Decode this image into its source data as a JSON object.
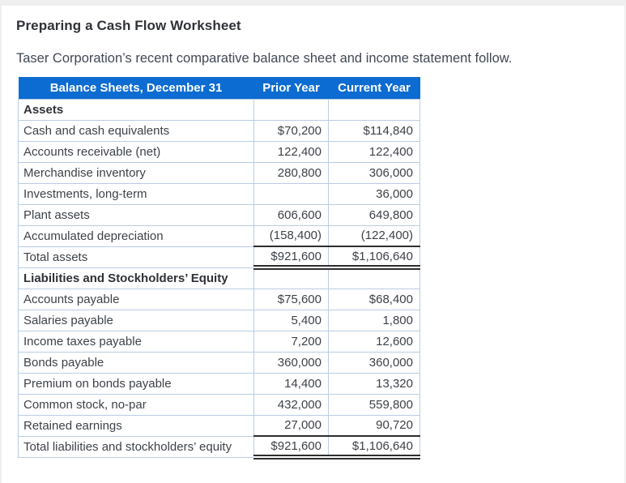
{
  "page": {
    "title": "Preparing a Cash Flow Worksheet",
    "intro": "Taser Corporation’s recent comparative balance sheet and income statement follow."
  },
  "colors": {
    "header_bg": "#0d6cd1",
    "header_text": "#ffffff",
    "row_border": "#b9cde3",
    "total_rule": "#2e2e2e",
    "text": "#3d4248"
  },
  "table": {
    "columns": {
      "label": "Balance Sheets, December 31",
      "prior": "Prior Year",
      "current": "Current Year"
    },
    "rows": [
      {
        "type": "section",
        "label": "Assets",
        "prior": "",
        "current": ""
      },
      {
        "type": "item",
        "label": "Cash and cash equivalents",
        "prior": "$70,200",
        "current": "$114,840"
      },
      {
        "type": "item",
        "label": "Accounts receivable (net)",
        "prior": "122,400",
        "current": "122,400"
      },
      {
        "type": "item",
        "label": "Merchandise inventory",
        "prior": "280,800",
        "current": "306,000"
      },
      {
        "type": "item",
        "label": "Investments, long-term",
        "prior": "",
        "current": "36,000"
      },
      {
        "type": "item",
        "label": "Plant assets",
        "prior": "606,600",
        "current": "649,800"
      },
      {
        "type": "item",
        "label": "Accumulated depreciation",
        "prior": "(158,400)",
        "current": "(122,400)"
      },
      {
        "type": "total",
        "label": "Total assets",
        "prior": "$921,600",
        "current": "$1,106,640"
      },
      {
        "type": "section",
        "label": "Liabilities and Stockholders’ Equity",
        "prior": "",
        "current": ""
      },
      {
        "type": "item",
        "label": "Accounts payable",
        "prior": "$75,600",
        "current": "$68,400"
      },
      {
        "type": "item",
        "label": "Salaries payable",
        "prior": "5,400",
        "current": "1,800"
      },
      {
        "type": "item",
        "label": "Income taxes payable",
        "prior": "7,200",
        "current": "12,600"
      },
      {
        "type": "item",
        "label": "Bonds payable",
        "prior": "360,000",
        "current": "360,000"
      },
      {
        "type": "item",
        "label": "Premium on bonds payable",
        "prior": "14,400",
        "current": "13,320"
      },
      {
        "type": "item",
        "label": "Common stock, no-par",
        "prior": "432,000",
        "current": "559,800"
      },
      {
        "type": "item",
        "label": "Retained earnings",
        "prior": "27,000",
        "current": "90,720"
      },
      {
        "type": "total",
        "label": "Total liabilities and stockholders’ equity",
        "prior": "$921,600",
        "current": "$1,106,640"
      }
    ]
  }
}
